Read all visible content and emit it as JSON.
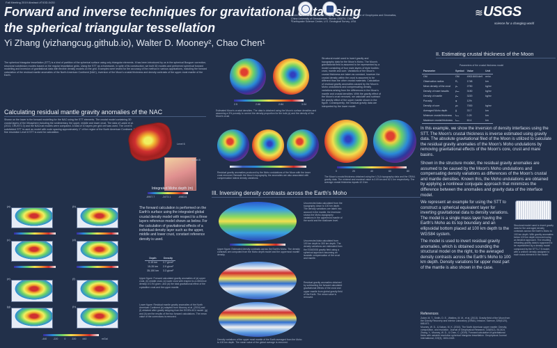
{
  "header": {
    "session": "Fall Meeting 2019 Abstract #T43D-0430",
    "title": "Forward and inverse techniques for gravitational data using the spherical triangular tessellation",
    "authors": "Yi Zhang (yizhangcug.github.io), Walter D. Mooney², Chao Chen¹",
    "affiliations": [
      "¹Hubei Subsurface Multi-scale Imaging Key Laboratory, Institute of Geophysics and Geomatics,",
      "China University of Geosciences, Wuhan 430074, China",
      "²Earthquake Science Center, U.S. Geological Survey, USA"
    ],
    "usgs_logo": "USGS",
    "usgs_tagline": "science for a changing world",
    "logo_icons": [
      "university-seal-icon",
      "institute-seal-icon",
      "usgs-wave-icon"
    ]
  },
  "left_column": {
    "intro_heading": "Introduction",
    "intro_text": "The spherical triangular tessellation (STT) is a kind of partition of the spherical surface using only triangular elements. It has been introduced by us in the spherical Bouguer correction, structural subdivision models based on the regular tessellation grids. Using the STT as a framework, in spite of its construction, we built 3D models and performed spherical forward modelling and inversion of gravitational data with flexible density models on the grid. Examples were tested for the accuracy of the method in various applications, including the forward calculation of the residual mantle anomalies of the North American Continent (NAC), inversion of the Moon's crustal thickness and density contrasts of the upper-most mantle of the Earth.",
    "section1_heading": "Calculating residual mantle gravity anomalies of the NAC",
    "section1_text": "Shown on the lower is the forward modelling for the NAC using the STT elements. The crustal model containing 3D crustal layers of the lithosphere including the sedimentary, the upper, middle and lower crust. The data of Laske et al. (2013, CRUST1.0) and the NACrust models were compared. A total of 10 layers per grid cell was used. The Level 6 subdivided STT is used as model with node spacing approximately 1° of the region of the North American Continent. A fine resolution Level 8 STT is used for calculation.",
    "moho_colorbar_label": "Integrated Moho depth (m)",
    "moho_colorbar_ticks": [
      "-6907.7",
      "-3473.1",
      "-6983.6"
    ],
    "l6_label": "Level 6",
    "l8_label": "Level 8",
    "forward_text": "The forward calculation is performed on the Earth's surface using the integrated global crustal density model with respect to a three layers reference model shown as below. For the calculation of gravitational effects of a individual density layer such as the upper, middle and lower crust, constant reference density is used.",
    "density_table": {
      "headers": [
        "Depth",
        "Density"
      ],
      "rows": [
        [
          "0-15 km",
          "2.7 g/cm³"
        ],
        [
          "15-35 km",
          "2.9 g/cm³"
        ],
        [
          "35-150 km",
          "3.3 g/cm³"
        ]
      ]
    },
    "caption_upper": "Upper figure: Forward calculated gravity anomalies of (a) upper crust, (b) middle crust, (c) lower crust with respect to a reference density of 2.94 g/cm³, and (d) the total gravitational effect of the crystalline crust and the upper mantle.",
    "caption_lower": "Lower figure: Residual mantle gravity anomalies of the North American Continent (e) adapted from Mooney et al. (2016) and (f) obtained after gravity stripping from the EIGEN-6C4 model. (g) and (h) are the results of the two forward calculations. The mean value of the corrections is removed.",
    "panel_labels": [
      "(a)",
      "(b)",
      "(c)",
      "(d)",
      "(e)",
      "(f)",
      "(g)",
      "(h)"
    ],
    "panel_units": "mGal",
    "cbar_ticks_small": [
      "-440",
      "-220",
      "0",
      "220",
      "440"
    ]
  },
  "middle_column": {
    "moon_caption_top": "Estimated Moon's crustal densities. The data is obtained using the Moon's surface densities and assuming a 3% porosity to correct the density proportion for the bulk (a) and the density of the Moon's crust.",
    "moon_cbar_ticks": [
      "2.5",
      "2.66",
      "2.84",
      "3.04"
    ],
    "topo_text": "Structural model used to invert gravity and topography data for the Moon's Moho. Shown in the model, the Moon's gravitational field is assumed to be represented by a model consisting of four main layers of triple-bodies, crust, mantle and core. Variations of the Moon's crustal thickness are taken as constant. However, lateral density variations within the crust are included. Inversion parameters shown in the table.",
    "residual_caption": "Residual gravity anomalies produced by the Moho undulations of the Moon with the lower crust removed. Beneath the Moon's topography, the anomalies are also associated with compensation lateral density variations.",
    "moon_thickness_caption": "The Moon's crustal thickness obtained using the LOLA topography data and the GRAIL gravity data. The minimal and maximal value is 0.09 km and 62.1 km respectively. The average crustal thickness equals 42.3 km.",
    "moon_cbar2_ticks": [
      "0",
      "20",
      "40",
      "60",
      "80"
    ],
    "section3_heading": "III. Inversing density contrasts across the Earth's Moho",
    "s3_text_1": "Uncorrected data calculated from the topography down to 100 km depth. The density variations are taken into account in the mantle, the inversion shows the Moho-topography variations in the uppermost mantle of the world and the shallower level.",
    "s3_text_2": "Uncorrected data calculated from 100 km depth to 300 km depth. The density variations are estimated from the EGM2008 gravity field using a spherical approach assuming an isostatic compensation of the crust and mantle.",
    "s3_text_3": "Residual gravity anomalies obtained by subtracting the forward calculated gravitational effects of the crust and upper mantle from global gravity field of the Earth. The mean value is removed.",
    "s3_caption_1": "Upper figure: Estimated density contrasts across the Earth's Moho. The density contrasts are computed from the Moho depth model and the uppermost mantle density.",
    "s3_caption_2": "Density variations of the upper most mantle of the Earth averaged from the Moho to 100 km depth. The mean value of the global average is removed."
  },
  "right_column": {
    "topo_paragraph": "Structural model used to invert gravity and topography data for the Moon's Moho. The Moon's gravitational field is assumed to be represented by a model consisting of four main layers of triple bodies: crust, mantle and core. Variations of the Moon's crustal thickness are taken as constant, however the crustal density within the crust is assumed to be different than the other crustal materials. Calculation of residual gravity anomalies caused by the Moon's Moho undulations and compensating density variations arising from the differences in the Moon's mantle and crustal densities. With the gravity effect of the Moon's crust removed, we calculate and subtract the gravity effect of the upper mantle shown in the figure. Consequently, the residual gravity data are interpreted by the lower model.",
    "section2_heading": "II. Estimating crustal thickness of the Moon",
    "params_title": "Parameters of the crustal thickness model",
    "params_headers": [
      "Parameter",
      "Symbol",
      "Value",
      "Unit"
    ],
    "params_rows": [
      [
        "GM",
        "GM",
        "4902.80014e9",
        "m³/s²"
      ],
      [
        "Observation radius",
        "R₀",
        "1748",
        "km"
      ],
      [
        "Mean density of the crust",
        "ρₐ",
        "2750",
        "kg/m³"
      ],
      [
        "Density of mare basalts",
        "ρₘₐ",
        "3150",
        "kg/m³"
      ],
      [
        "Density of mantle",
        "ρₘ",
        "3220",
        "kg/m³"
      ],
      [
        "Porosity",
        "φ",
        "12%",
        ""
      ],
      [
        "Density of core",
        "ρc",
        "7000",
        "kg/m³"
      ],
      [
        "Averaged Moho depth",
        "ḡ",
        "33.7",
        "km"
      ],
      [
        "Minimum crustal thickness",
        "tₘᵢₙ",
        "0.29",
        "km"
      ],
      [
        "Maximum crustal thickness",
        "tₘₐₓ",
        "60.4",
        "km"
      ]
    ],
    "example_text": "In this example, we show the inversion of density interfaces using the STT. The Moon's crustal thickness is inverse estimated using gravity data. The absolute gravitational filed of the Moon is utilized to calculate the residual gravity anomalies of the Moon's Moho undulations by removing gravitational effects of the Moon's core, crust and mare basins.",
    "residual_text": "Shown in the structure model, the residual gravity anomalies are assumed to be caused by the Moon's Moho undulations and compensating density variations as differences of the Moon's crustal and mantle densities. Known this, the Moho undulations are obtained by applying a nonlinear conjugate approach that minimizes the difference between the anomalies and gravity data of the interface model.",
    "earth_text": "We represent an example for using the STT to construct a spherical equivalent layer for inverting gravitational data to density variations. The model is a single mass layer having the Earth's Moho as its top boundary and an ellipsoidal bottom placed at 100 km depth to the WGS84 system.",
    "earth_text_2": "The model is used to invert residual gravity anomalies, which is obtained sounding the structural model on the right, to the averaged density contrasts across the Earth's Moho to 100 km depth. Density variations for upper most part of the mantle is also shown in the case.",
    "model_caption": "Structural model used to invert gravity data for the averaged density contrasts across the Earth's Moho to 100 km depth. With gravity anomalies below 100 km depth removed using an iterative approach. The resulting refracting gravity data is supposed to be represented by a density model composed by the STT-L7.5 model, with a uniform density assigned to each mass element in the model.",
    "references_heading": "References",
    "references": [
      "Zuber, M. T., Smith, D. E., Watkins, M. M., et al. (2013). Gravity field of the Moon from the Gravity Recovery and Interior Laboratory (GRAIL) mission. Science, 339(6120), 668-671.",
      "Mooney, W. D., & Kaban, M. K. (2010). The North American upper mantle: Density, composition, and evolution. Journal of Geophysical Research, 115(B12), B12424.",
      "Zhang, Y., Mooney, W. D., & Chen, C. (2019). Forward calculation of gravitational fields with variable resolution spherical triangular tessellation. Geophysical Journal International, 219(3), 1604-1618."
    ]
  }
}
